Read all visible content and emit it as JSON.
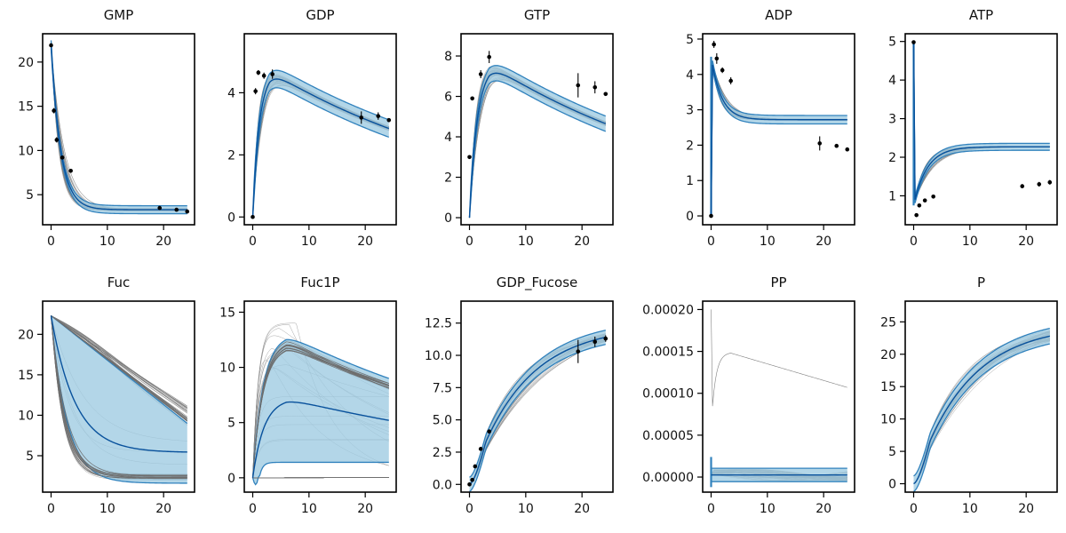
{
  "colors": {
    "band": "#9ecae1",
    "band_edge": "#3182bd",
    "median": "#08519c",
    "traj": "#808080",
    "point": "#000000"
  },
  "chart_data": [
    {
      "type": "line",
      "title": "GMP",
      "xlim": [
        -1.5,
        25.5
      ],
      "ylim": [
        1.6,
        23.2
      ],
      "xticks": [
        0,
        10,
        20
      ],
      "yticks": [
        5,
        10,
        15,
        20
      ],
      "ytick_labels": [
        "5",
        "10",
        "15",
        "20"
      ],
      "band_shape": "decay",
      "start": 22,
      "end": 3.3,
      "rate": 0.55,
      "band_width": 0.45,
      "traj_spread": 0.12,
      "observations": {
        "x": [
          0,
          0.5,
          1,
          2,
          3.5,
          19.3,
          22.3,
          24.2
        ],
        "y": [
          21.9,
          14.5,
          11.2,
          9.2,
          7.7,
          3.5,
          3.3,
          3.1
        ],
        "err": [
          0.1,
          0.3,
          0.3,
          0.2,
          0.2,
          0.1,
          0.1,
          0.1
        ]
      }
    },
    {
      "type": "line",
      "title": "GDP",
      "xlim": [
        -1.5,
        25.5
      ],
      "ylim": [
        -0.25,
        5.9
      ],
      "xticks": [
        0,
        10,
        20
      ],
      "yticks": [
        0,
        2,
        4
      ],
      "ytick_labels": [
        "0",
        "2",
        "4"
      ],
      "band_shape": "rise_fall",
      "start": 0,
      "peak": 4.7,
      "peak_x": 3,
      "end": 2.85,
      "band_width": 0.28,
      "traj_spread": 0.1,
      "observations": {
        "x": [
          0,
          0.5,
          1,
          2,
          3.5,
          19.3,
          22.3,
          24.2
        ],
        "y": [
          0,
          4.05,
          4.65,
          4.55,
          4.6,
          3.2,
          3.25,
          3.12
        ],
        "err": [
          0,
          0.1,
          0.08,
          0.1,
          0.15,
          0.2,
          0.12,
          0.06
        ]
      }
    },
    {
      "type": "line",
      "title": "GTP",
      "xlim": [
        -1.5,
        25.5
      ],
      "ylim": [
        -0.35,
        9.1
      ],
      "xticks": [
        0,
        10,
        20
      ],
      "yticks": [
        0,
        2,
        4,
        6,
        8
      ],
      "ytick_labels": [
        "0",
        "2",
        "4",
        "6",
        "8"
      ],
      "band_shape": "rise_fall",
      "start": 0,
      "peak": 7.6,
      "peak_x": 3.5,
      "end": 4.65,
      "band_width": 0.38,
      "traj_spread": 0.1,
      "observations": {
        "x": [
          0,
          0.5,
          2,
          3.5,
          19.3,
          22.3,
          24.2
        ],
        "y": [
          3.0,
          5.9,
          7.1,
          7.95,
          6.55,
          6.45,
          6.12
        ],
        "err": [
          0,
          0.1,
          0.2,
          0.3,
          0.6,
          0.3,
          0.05
        ]
      }
    },
    {
      "type": "line",
      "title": "ADP",
      "xlim": [
        -1.5,
        25.5
      ],
      "ylim": [
        -0.25,
        5.15
      ],
      "xticks": [
        0,
        10,
        20
      ],
      "yticks": [
        0,
        1,
        2,
        3,
        4,
        5
      ],
      "ytick_labels": [
        "0",
        "1",
        "2",
        "3",
        "4",
        "5"
      ],
      "band_shape": "spike_decay",
      "start": 0,
      "spike": 4.5,
      "end": 2.72,
      "rate": 0.55,
      "band_width": 0.12,
      "traj_spread": 0.05,
      "observations": {
        "x": [
          0,
          0.5,
          1,
          2,
          3.5,
          19.3,
          22.3,
          24.2
        ],
        "y": [
          0,
          4.85,
          4.45,
          4.12,
          3.82,
          2.05,
          1.98,
          1.88
        ],
        "err": [
          0,
          0.1,
          0.15,
          0.08,
          0.1,
          0.2,
          0.04,
          0.05
        ]
      }
    },
    {
      "type": "line",
      "title": "ATP",
      "xlim": [
        -1.5,
        25.5
      ],
      "ylim": [
        0.25,
        5.2
      ],
      "xticks": [
        0,
        10,
        20
      ],
      "yticks": [
        1,
        2,
        3,
        4,
        5
      ],
      "ytick_labels": [
        "1",
        "2",
        "3",
        "4",
        "5"
      ],
      "band_shape": "spike_rise",
      "start": 5,
      "low": 0.75,
      "end": 2.27,
      "rate": 0.42,
      "band_width": 0.09,
      "traj_spread": 0.04,
      "observations": {
        "x": [
          0,
          0.5,
          1,
          2,
          3.5,
          19.3,
          22.3,
          24.2
        ],
        "y": [
          4.98,
          0.5,
          0.75,
          0.88,
          0.98,
          1.25,
          1.3,
          1.35
        ],
        "err": [
          0,
          0.04,
          0.04,
          0.04,
          0.05,
          0.05,
          0.06,
          0.06
        ]
      }
    },
    {
      "type": "line",
      "title": "Fuc",
      "xlim": [
        -1.5,
        25.5
      ],
      "ylim": [
        0.5,
        24.1
      ],
      "xticks": [
        0,
        10,
        20
      ],
      "yticks": [
        5,
        10,
        15,
        20
      ],
      "ytick_labels": [
        "5",
        "10",
        "15",
        "20"
      ],
      "band_shape": "wide_decay",
      "start": 22.3,
      "upper_end": 9.0,
      "lower_end": 1.6,
      "median_end": 5.4,
      "lower_rate": 0.35,
      "median_rate": 0.22,
      "traj_upper_end": 10.0,
      "traj_lower_end": 2.4,
      "observations": {
        "x": [],
        "y": [],
        "err": []
      }
    },
    {
      "type": "line",
      "title": "Fuc1P",
      "xlim": [
        -1.5,
        25.5
      ],
      "ylim": [
        -1.3,
        16.0
      ],
      "xticks": [
        0,
        10,
        20
      ],
      "yticks": [
        0,
        5,
        10,
        15
      ],
      "ytick_labels": [
        "0",
        "5",
        "10",
        "15"
      ],
      "band_shape": "wide_hump",
      "upper_peak": 13.0,
      "upper_end": 9.0,
      "median_peak": 7.2,
      "median_end": 5.2,
      "lower_peak": 1.3,
      "lower_end": 1.3,
      "traj_cluster_peak": 12.4,
      "traj_cluster_end": 8.3,
      "observations": {
        "x": [],
        "y": [],
        "err": []
      }
    },
    {
      "type": "line",
      "title": "GDP_Fucose",
      "xlim": [
        -1.5,
        25.5
      ],
      "ylim": [
        -0.6,
        14.2
      ],
      "xticks": [
        0,
        10,
        20
      ],
      "yticks": [
        0,
        2.5,
        5,
        7.5,
        10,
        12.5
      ],
      "ytick_labels": [
        "0.0",
        "2.5",
        "5.0",
        "7.5",
        "10.0",
        "12.5"
      ],
      "band_shape": "sigmoid_rise",
      "start": 0,
      "end": 11.4,
      "band_width": 0.55,
      "traj_spread": 0.1,
      "observations": {
        "x": [
          0,
          0.5,
          1,
          2,
          3.5,
          19.3,
          22.3,
          24.2
        ],
        "y": [
          0,
          0.35,
          1.4,
          2.75,
          4.1,
          10.3,
          11.05,
          11.3
        ],
        "err": [
          0,
          0.05,
          0.05,
          0.05,
          0.1,
          0.9,
          0.4,
          0.25
        ]
      }
    },
    {
      "type": "line",
      "title": "PP",
      "xlim": [
        -1.5,
        25.5
      ],
      "ylim": [
        -1.8e-05,
        0.00021
      ],
      "xticks": [
        0,
        10,
        20
      ],
      "yticks": [
        0,
        5e-05,
        0.0001,
        0.00015,
        0.0002
      ],
      "ytick_labels": [
        "0.00000",
        "0.00005",
        "0.00010",
        "0.00015",
        "0.00020"
      ],
      "band_shape": "flat",
      "start": 2.5e-06,
      "end": 2.5e-06,
      "band_width": 8e-06,
      "traj_spread": 0.35,
      "outlier": {
        "start": 0.0002,
        "low": 6e-05,
        "peak": 0.000148,
        "peak_x": 3.5,
        "end": 0.000107
      },
      "observations": {
        "x": [],
        "y": [],
        "err": []
      }
    },
    {
      "type": "line",
      "title": "P",
      "xlim": [
        -1.5,
        25.5
      ],
      "ylim": [
        -1.3,
        28.2
      ],
      "xticks": [
        0,
        10,
        20
      ],
      "yticks": [
        0,
        5,
        10,
        15,
        20,
        25
      ],
      "ytick_labels": [
        "0",
        "5",
        "10",
        "15",
        "20",
        "25"
      ],
      "band_shape": "sigmoid_rise",
      "start": 0,
      "end": 22.8,
      "band_width": 1.2,
      "traj_spread": 0.12,
      "observations": {
        "x": [],
        "y": [],
        "err": []
      }
    }
  ]
}
